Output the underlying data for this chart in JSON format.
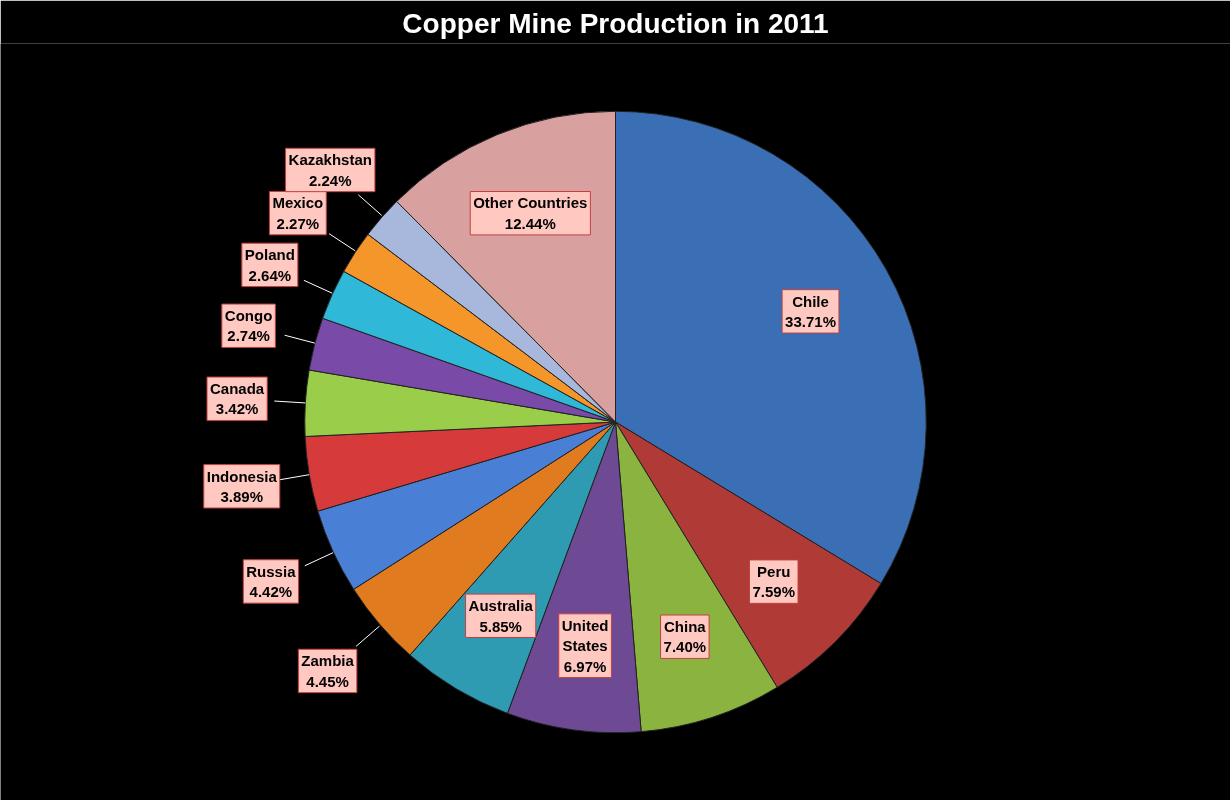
{
  "chart_data": {
    "type": "pie",
    "title": "Copper Mine Production in 2011",
    "categories": [
      "Chile",
      "Peru",
      "China",
      "United States",
      "Australia",
      "Zambia",
      "Russia",
      "Indonesia",
      "Canada",
      "Congo",
      "Poland",
      "Mexico",
      "Kazakhstan",
      "Other Countries"
    ],
    "values": [
      33.71,
      7.59,
      7.4,
      6.97,
      5.85,
      4.45,
      4.42,
      3.89,
      3.42,
      2.74,
      2.64,
      2.27,
      2.24,
      12.44
    ],
    "colors": [
      "#3a6fb5",
      "#b03a36",
      "#8bb33f",
      "#6e4a94",
      "#2f9bb3",
      "#e07b20",
      "#4a7fd6",
      "#d63a3a",
      "#9acd4a",
      "#7a4aa8",
      "#30b8d8",
      "#f5962a",
      "#a8b8dc",
      "#d9a0a0"
    ],
    "value_labels": [
      "33.71%",
      "7.59%",
      "7.40%",
      "6.97%",
      "5.85%",
      "4.45%",
      "4.42%",
      "3.89%",
      "3.42%",
      "2.74%",
      "2.64%",
      "2.27%",
      "2.24%",
      "12.44%"
    ]
  }
}
